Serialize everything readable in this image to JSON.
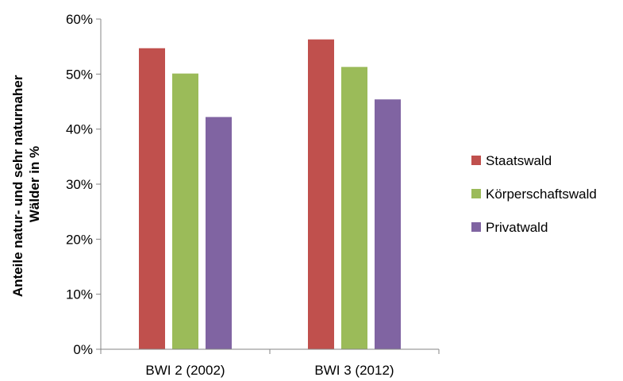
{
  "chart_data": {
    "type": "bar",
    "title": "",
    "xlabel": "",
    "ylabel_lines": [
      "Anteile natur- und sehr naturnaher",
      "Wälder in %"
    ],
    "ylim": [
      0,
      0.6
    ],
    "y_ticks": [
      0,
      0.1,
      0.2,
      0.3,
      0.4,
      0.5,
      0.6
    ],
    "y_tick_labels": [
      "0%",
      "10%",
      "20%",
      "30%",
      "40%",
      "50%",
      "60%"
    ],
    "categories": [
      "BWI 2 (2002)",
      "BWI 3 (2012)"
    ],
    "series": [
      {
        "name": "Staatswald",
        "color": "#c0504d",
        "values": [
          0.547,
          0.563
        ]
      },
      {
        "name": "Körperschaftswald",
        "color": "#9bbb59",
        "values": [
          0.501,
          0.513
        ]
      },
      {
        "name": "Privatwald",
        "color": "#8064a2",
        "values": [
          0.422,
          0.454
        ]
      }
    ],
    "grid": false,
    "legend_position": "right"
  }
}
